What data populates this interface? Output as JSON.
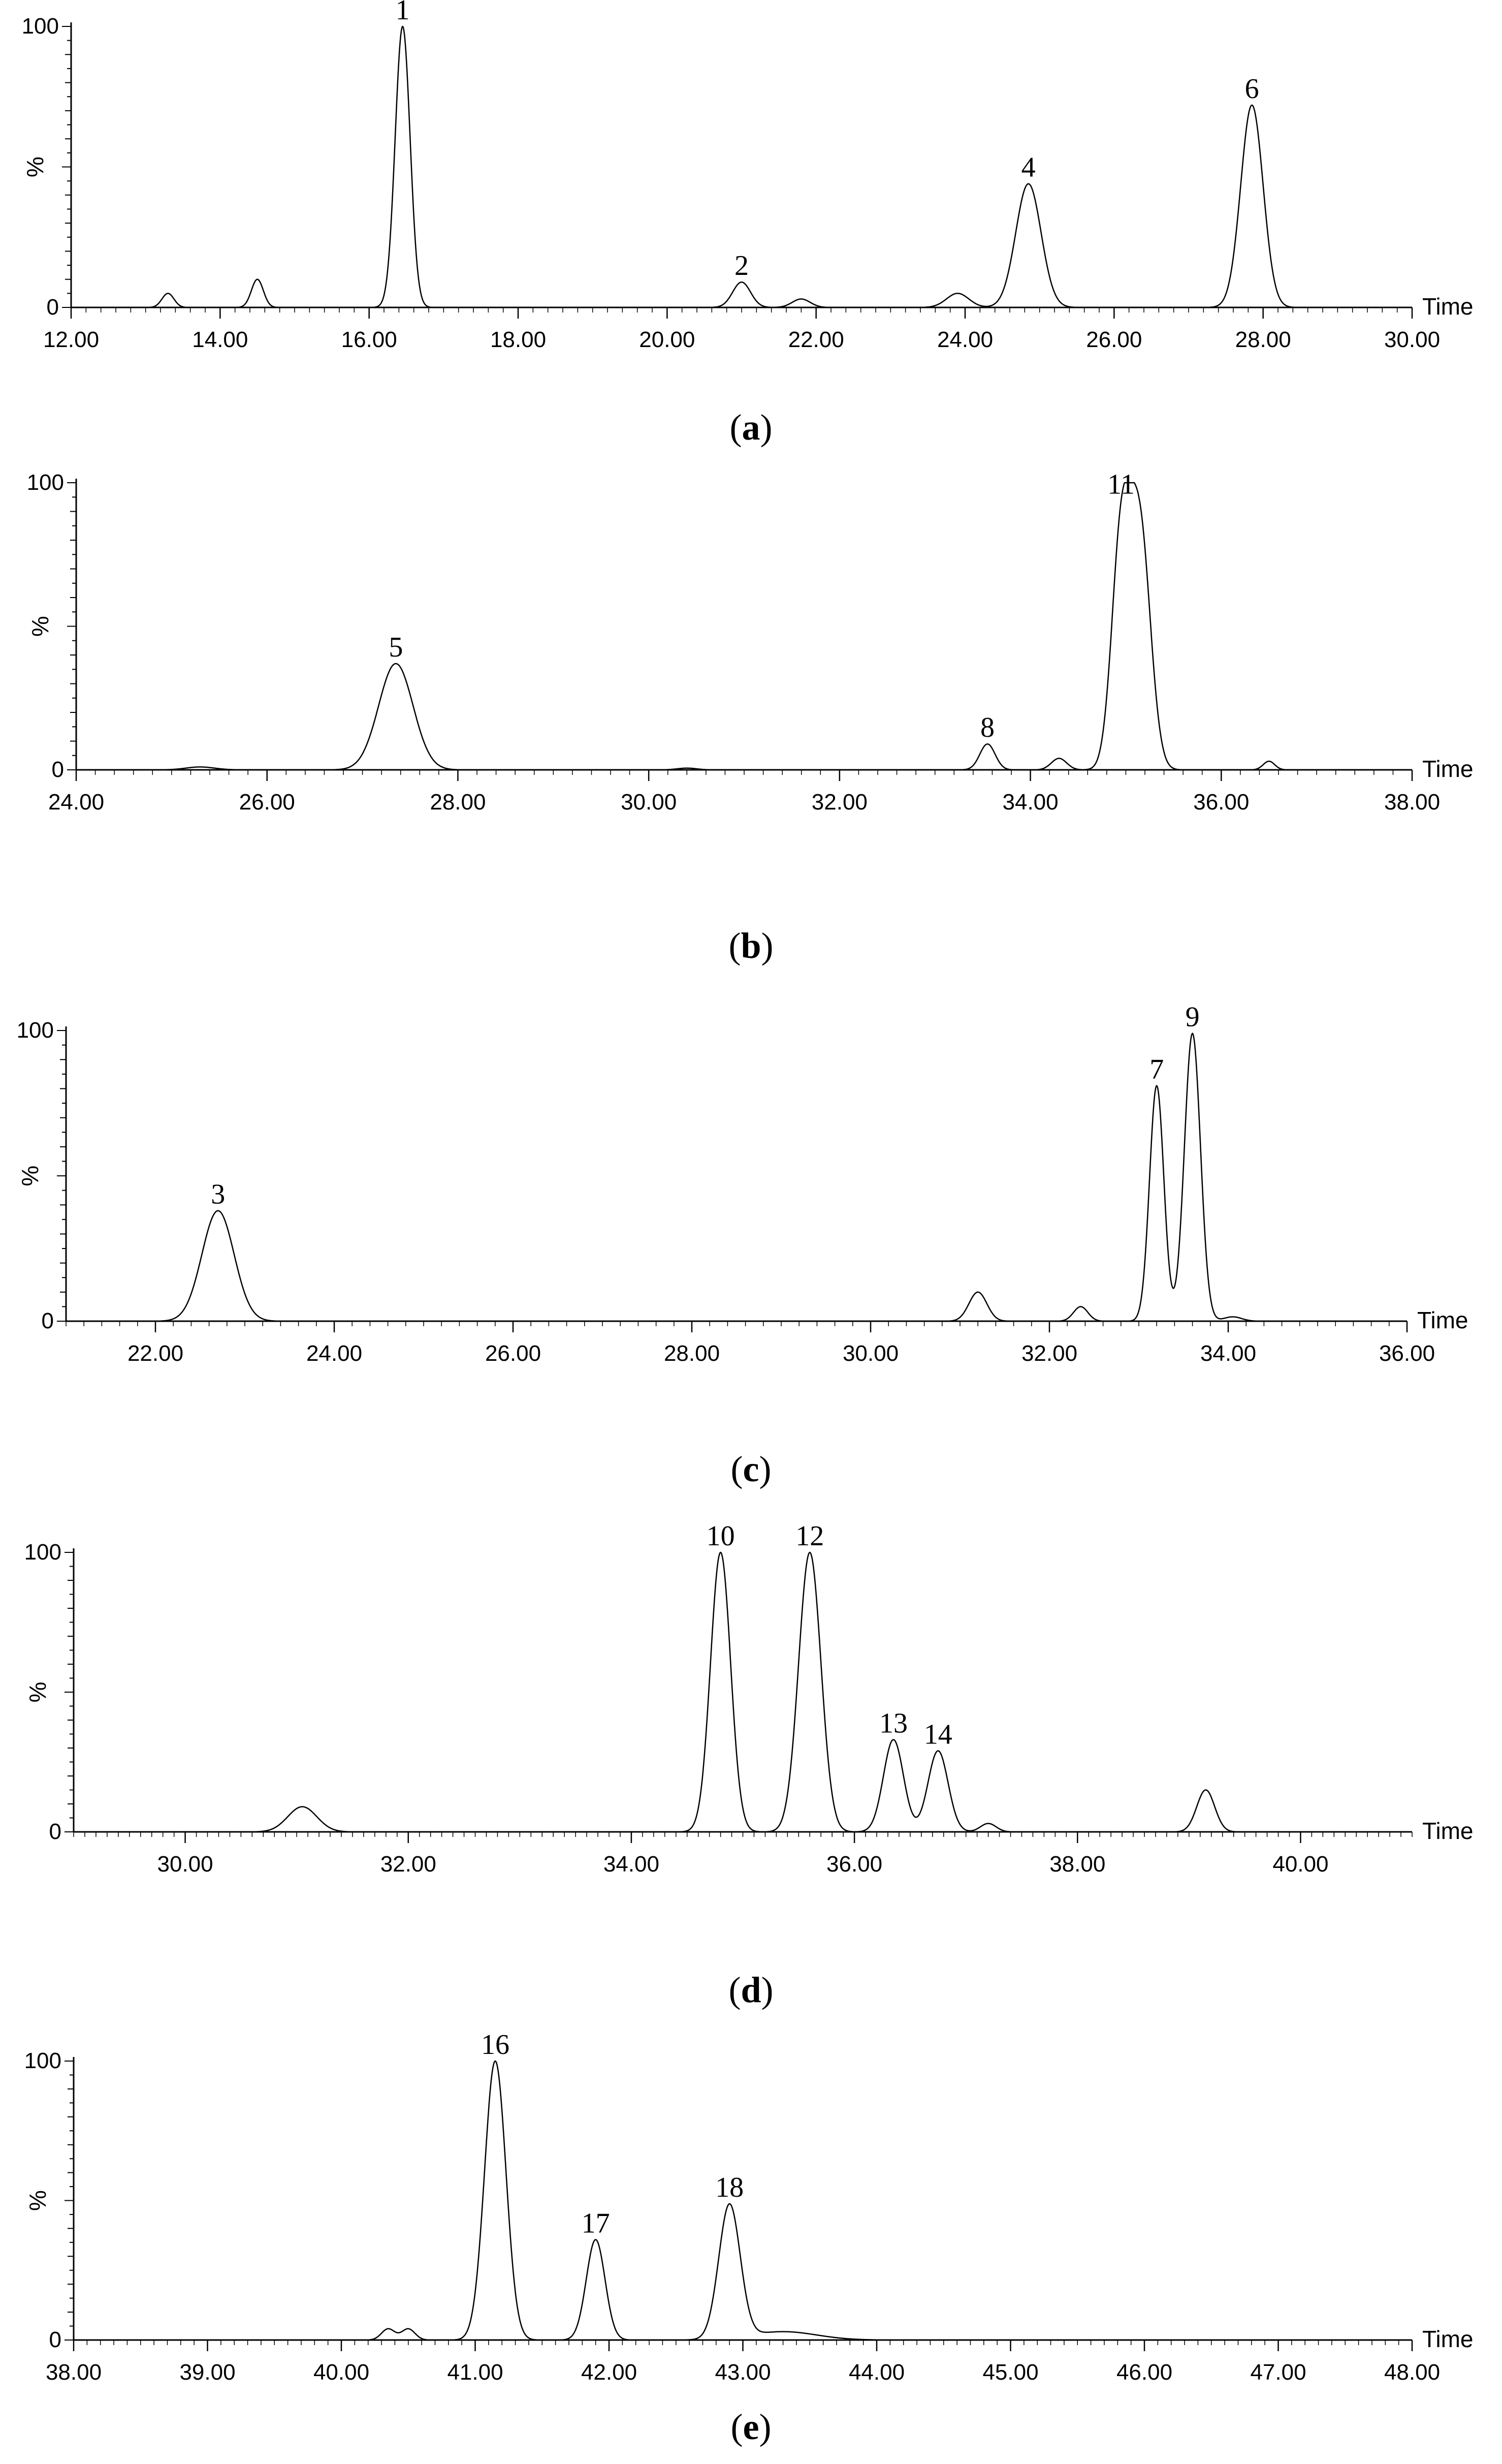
{
  "chart_data": [
    {
      "type": "line",
      "panel_label": "a",
      "xlabel": "Time",
      "ylabel": "%",
      "xlim": [
        12.0,
        30.0
      ],
      "ylim": [
        0,
        100
      ],
      "x_ticks": [
        "12.00",
        "14.00",
        "16.00",
        "18.00",
        "20.00",
        "22.00",
        "24.00",
        "26.00",
        "28.00",
        "30.00"
      ],
      "y_ticks": [
        "0",
        "100"
      ],
      "peaks": [
        {
          "rt": 13.3,
          "height": 5,
          "width": 0.08
        },
        {
          "rt": 14.5,
          "height": 10,
          "width": 0.08
        },
        {
          "rt": 16.45,
          "height": 100,
          "width": 0.1,
          "label": "1"
        },
        {
          "rt": 21.0,
          "height": 9,
          "width": 0.12,
          "label": "2"
        },
        {
          "rt": 21.8,
          "height": 3,
          "width": 0.12
        },
        {
          "rt": 23.9,
          "height": 5,
          "width": 0.15
        },
        {
          "rt": 24.85,
          "height": 44,
          "width": 0.17,
          "label": "4"
        },
        {
          "rt": 27.85,
          "height": 72,
          "width": 0.15,
          "label": "6"
        }
      ]
    },
    {
      "type": "line",
      "panel_label": "b",
      "xlabel": "Time",
      "ylabel": "%",
      "xlim": [
        24.0,
        38.0
      ],
      "ylim": [
        0,
        100
      ],
      "x_ticks": [
        "24.00",
        "26.00",
        "28.00",
        "30.00",
        "32.00",
        "34.00",
        "36.00",
        "38.00"
      ],
      "y_ticks": [
        "0",
        "100"
      ],
      "peaks": [
        {
          "rt": 25.3,
          "height": 1,
          "width": 0.15
        },
        {
          "rt": 27.35,
          "height": 37,
          "width": 0.18,
          "label": "5"
        },
        {
          "rt": 30.4,
          "height": 0.6,
          "width": 0.1
        },
        {
          "rt": 33.55,
          "height": 9,
          "width": 0.08,
          "label": "8"
        },
        {
          "rt": 34.3,
          "height": 4,
          "width": 0.08
        },
        {
          "rt": 34.95,
          "height": 78,
          "width": 0.1,
          "label": "11"
        },
        {
          "rt": 35.15,
          "height": 82,
          "width": 0.11
        },
        {
          "rt": 36.5,
          "height": 3,
          "width": 0.06
        }
      ]
    },
    {
      "type": "line",
      "panel_label": "c",
      "xlabel": "Time",
      "ylabel": "%",
      "xlim": [
        21.0,
        36.0
      ],
      "ylim": [
        0,
        100
      ],
      "x_ticks": [
        "22.00",
        "24.00",
        "26.00",
        "28.00",
        "30.00",
        "32.00",
        "34.00",
        "36.00"
      ],
      "y_ticks": [
        "0",
        "100"
      ],
      "peaks": [
        {
          "rt": 22.7,
          "height": 38,
          "width": 0.18,
          "label": "3"
        },
        {
          "rt": 31.2,
          "height": 10,
          "width": 0.1
        },
        {
          "rt": 32.35,
          "height": 5,
          "width": 0.08
        },
        {
          "rt": 33.2,
          "height": 81,
          "width": 0.08,
          "label": "7"
        },
        {
          "rt": 33.6,
          "height": 99,
          "width": 0.09,
          "label": "9"
        },
        {
          "rt": 34.05,
          "height": 1.5,
          "width": 0.1
        }
      ]
    },
    {
      "type": "line",
      "panel_label": "d",
      "xlabel": "Time",
      "ylabel": "%",
      "xlim": [
        29.0,
        41.0
      ],
      "ylim": [
        0,
        100
      ],
      "x_ticks": [
        "30.00",
        "32.00",
        "34.00",
        "36.00",
        "38.00",
        "40.00"
      ],
      "y_ticks": [
        "0",
        "100"
      ],
      "peaks": [
        {
          "rt": 31.05,
          "height": 9,
          "width": 0.13
        },
        {
          "rt": 34.8,
          "height": 100,
          "width": 0.09,
          "label": "10"
        },
        {
          "rt": 35.6,
          "height": 100,
          "width": 0.1,
          "label": "12"
        },
        {
          "rt": 36.35,
          "height": 33,
          "width": 0.09,
          "label": "13"
        },
        {
          "rt": 36.75,
          "height": 29,
          "width": 0.09,
          "label": "14"
        },
        {
          "rt": 37.2,
          "height": 3,
          "width": 0.07
        },
        {
          "rt": 39.15,
          "height": 15,
          "width": 0.08
        }
      ]
    },
    {
      "type": "line",
      "panel_label": "e",
      "xlabel": "Time",
      "ylabel": "%",
      "xlim": [
        38.0,
        48.0
      ],
      "ylim": [
        0,
        100
      ],
      "x_ticks": [
        "38.00",
        "39.00",
        "40.00",
        "41.00",
        "42.00",
        "43.00",
        "44.00",
        "45.00",
        "46.00",
        "47.00",
        "48.00"
      ],
      "y_ticks": [
        "0",
        "100"
      ],
      "peaks": [
        {
          "rt": 40.35,
          "height": 4,
          "width": 0.05
        },
        {
          "rt": 40.5,
          "height": 4,
          "width": 0.05
        },
        {
          "rt": 41.15,
          "height": 100,
          "width": 0.08,
          "label": "16"
        },
        {
          "rt": 41.9,
          "height": 36,
          "width": 0.07,
          "label": "17"
        },
        {
          "rt": 42.9,
          "height": 48,
          "width": 0.08,
          "label": "18"
        },
        {
          "rt": 43.3,
          "height": 3,
          "width": 0.25
        }
      ]
    }
  ]
}
